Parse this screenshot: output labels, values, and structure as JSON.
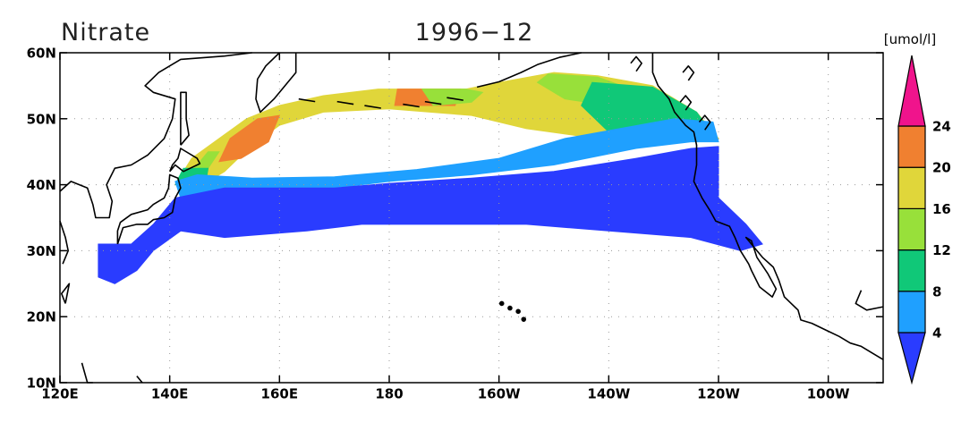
{
  "title": "Nitrate",
  "date": "1996−12",
  "axes": {
    "lat_labels": [
      "60N",
      "50N",
      "40N",
      "30N",
      "20N",
      "10N"
    ],
    "lon_labels": [
      "120E",
      "140E",
      "160E",
      "180",
      "160W",
      "140W",
      "120W",
      "100W"
    ]
  },
  "colorbar": {
    "unit": "[umol/l]",
    "labels": [
      4,
      8,
      12,
      16,
      20,
      24
    ],
    "colors": [
      "#2a3cff",
      "#1fa0ff",
      "#10c878",
      "#98e03a",
      "#e0d63a",
      "#f08030",
      "#f0148c"
    ]
  }
}
